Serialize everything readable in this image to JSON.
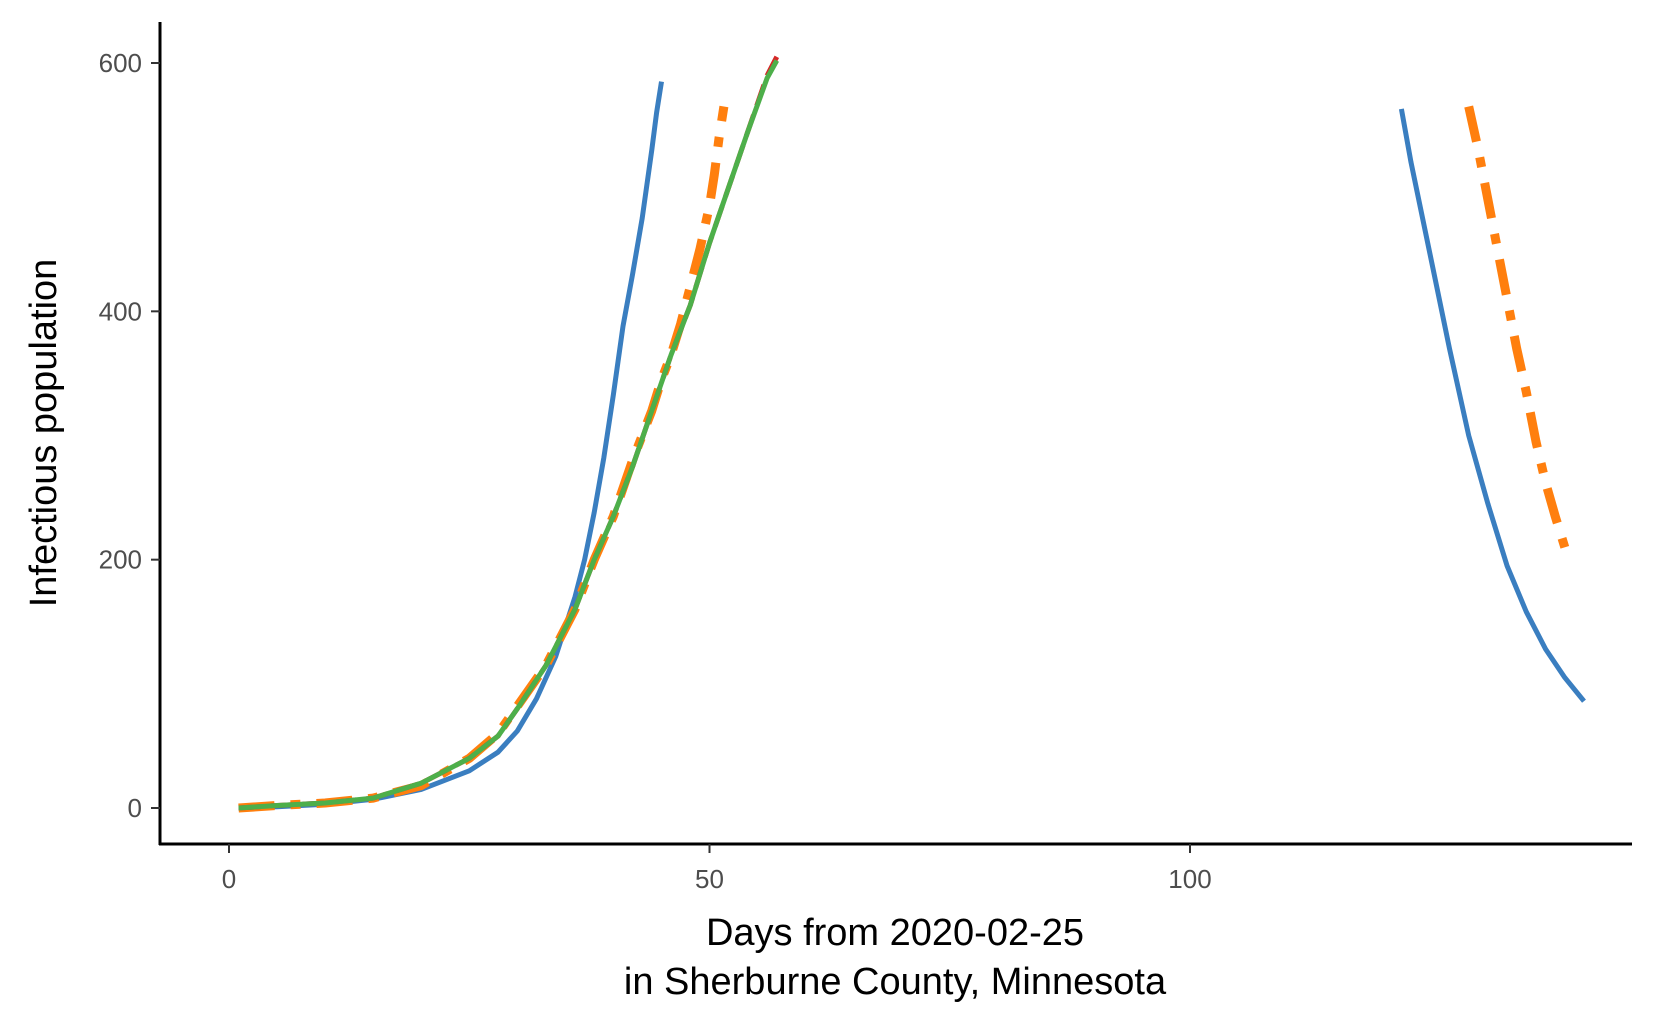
{
  "chart_data": {
    "type": "line",
    "title": "",
    "xlabel_lines": [
      "Days from 2020-02-25",
      "in Sherburne County, Minnesota"
    ],
    "ylabel": "Infectious population",
    "xlim": [
      -5,
      145
    ],
    "ylim": [
      -30,
      630
    ],
    "x_ticks": [
      0,
      50,
      100
    ],
    "y_ticks": [
      0,
      200,
      400,
      600
    ],
    "grid": false,
    "legend": "none",
    "series": [
      {
        "color": "#3A7EC0",
        "style": "solid",
        "segments": [
          {
            "x": [
              1,
              5,
              10,
              15,
              20,
              25,
              28,
              30,
              32,
              34,
              36,
              37,
              38,
              39,
              40,
              41,
              42,
              43,
              44,
              44.5,
              45
            ],
            "y": [
              0,
              1,
              3,
              7,
              15,
              30,
              45,
              62,
              88,
              122,
              170,
              200,
              238,
              282,
              333,
              388,
              430,
              475,
              530,
              560,
              585
            ]
          },
          {
            "x": [
              122,
              123,
              125,
              127,
              129,
              131,
              133,
              135,
              137,
              139,
              141
            ],
            "y": [
              563,
              520,
              445,
              370,
              300,
              245,
              195,
              158,
              128,
              105,
              86
            ]
          }
        ]
      },
      {
        "color": "#FF7F0E",
        "style": "dashdot",
        "segments": [
          {
            "x": [
              1,
              5,
              10,
              15,
              20,
              25,
              28,
              30,
              33,
              36,
              38,
              40,
              42,
              44,
              45,
              46,
              47,
              48,
              49,
              50,
              50.5,
              51,
              51.5
            ],
            "y": [
              0,
              2,
              4,
              8,
              18,
              40,
              60,
              82,
              115,
              160,
              200,
              235,
              280,
              320,
              345,
              365,
              390,
              420,
              450,
              485,
              510,
              540,
              565
            ]
          },
          {
            "x": [
              129,
              130,
              131,
              132,
              133,
              134,
              135,
              136,
              137,
              138,
              139
            ],
            "y": [
              565,
              530,
              490,
              450,
              410,
              370,
              335,
              295,
              262,
              235,
              210
            ]
          }
        ]
      },
      {
        "color": "#D62728",
        "style": "dashed",
        "segments": [
          {
            "x": [
              1,
              5,
              10,
              15,
              20,
              25,
              28,
              30,
              33,
              36,
              38,
              40,
              42,
              44,
              46,
              48,
              50,
              52,
              54,
              56,
              57
            ],
            "y": [
              0,
              2,
              4,
              8,
              20,
              40,
              58,
              80,
              115,
              160,
              200,
              235,
              275,
              320,
              365,
              405,
              455,
              500,
              545,
              590,
              605
            ]
          }
        ]
      },
      {
        "color": "#4DAF4A",
        "style": "solid",
        "segments": [
          {
            "x": [
              1,
              5,
              10,
              15,
              20,
              25,
              28,
              30,
              33,
              36,
              38,
              40,
              42,
              44,
              46,
              48,
              50,
              52,
              54,
              56,
              57
            ],
            "y": [
              0,
              2,
              4,
              8,
              20,
              40,
              58,
              80,
              115,
              160,
              200,
              235,
              275,
              320,
              365,
              405,
              455,
              500,
              545,
              588,
              602
            ]
          }
        ]
      }
    ]
  }
}
